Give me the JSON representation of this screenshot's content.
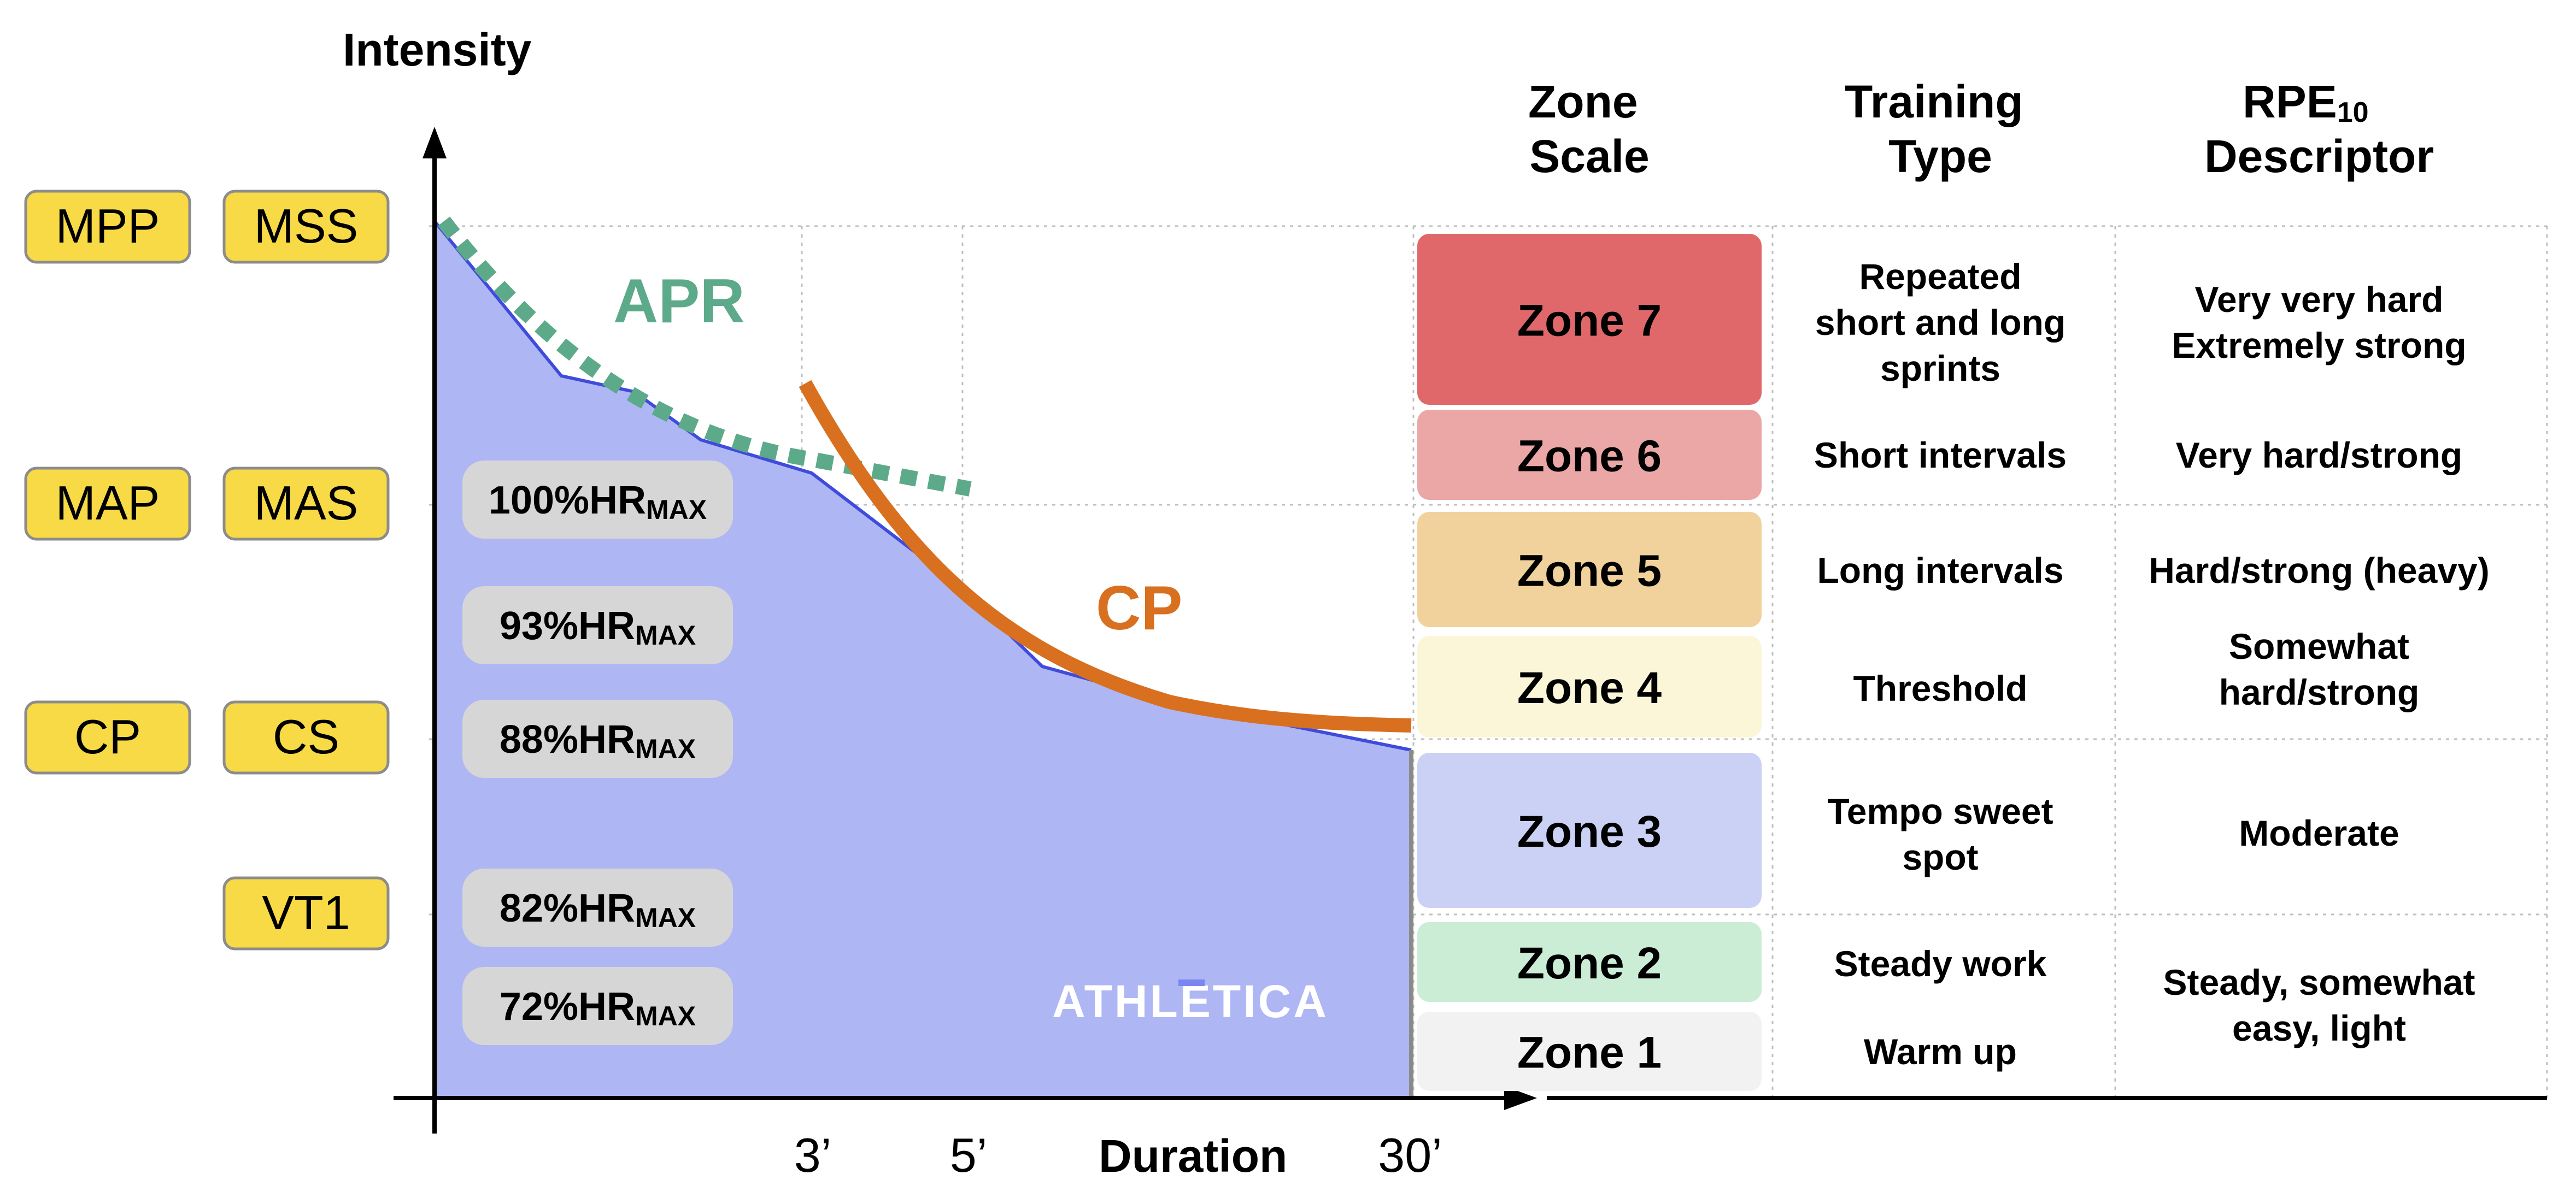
{
  "axes": {
    "y_label": "Intensity",
    "x_label": "Duration",
    "x_ticks": [
      "3’",
      "5’",
      "30’"
    ]
  },
  "left_labels": {
    "row1": [
      "MPP",
      "MSS"
    ],
    "row2": [
      "MAP",
      "MAS"
    ],
    "row3": [
      "CP",
      "CS"
    ],
    "row4": [
      "VT1"
    ]
  },
  "hr_labels": [
    {
      "pct": "100%",
      "hr": "HR",
      "sub": "MAX"
    },
    {
      "pct": "93%",
      "hr": "HR",
      "sub": "MAX"
    },
    {
      "pct": "88%",
      "hr": "HR",
      "sub": "MAX"
    },
    {
      "pct": "82%",
      "hr": "HR",
      "sub": "MAX"
    },
    {
      "pct": "72%",
      "hr": "HR",
      "sub": "MAX"
    }
  ],
  "curves": {
    "apr_label": "APR",
    "cp_label": "CP"
  },
  "watermark": "ATHLETICA",
  "table": {
    "headers": {
      "zone_scale": [
        "Zone",
        "Scale"
      ],
      "training_type": [
        "Training",
        "Type"
      ],
      "rpe": {
        "main": "RPE",
        "sub": "10",
        "line2": "Descriptor"
      }
    },
    "zones": [
      {
        "name": "Zone 7",
        "color": "#E0686A"
      },
      {
        "name": "Zone 6",
        "color": "#EBA7A6"
      },
      {
        "name": "Zone 5",
        "color": "#F1D19C"
      },
      {
        "name": "Zone 4",
        "color": "#FCF6D8"
      },
      {
        "name": "Zone 3",
        "color": "#CBD0F5"
      },
      {
        "name": "Zone 2",
        "color": "#CBEDD6"
      },
      {
        "name": "Zone 1",
        "color": "#F2F2F3"
      }
    ],
    "training_types": [
      [
        "Repeated",
        "short and long",
        "sprints"
      ],
      [
        "Short intervals"
      ],
      [
        "Long intervals"
      ],
      [
        "Threshold"
      ],
      [
        "Tempo sweet",
        "spot"
      ],
      [
        "Steady work"
      ],
      [
        "Warm up"
      ]
    ],
    "rpe_descriptors": [
      [
        "Very very hard",
        "Extremely strong"
      ],
      [
        "Very hard/strong"
      ],
      [
        "Hard/strong (heavy)"
      ],
      [
        "Somewhat",
        "hard/strong"
      ],
      [
        "Moderate"
      ],
      [
        "Steady, somewhat",
        "easy, light"
      ]
    ]
  },
  "colors": {
    "area_fill": "#AFB6F4",
    "area_line": "#3F4BDB",
    "apr": "#5DAA8A",
    "cp": "#D8701F",
    "pill_yellow": "#F7DA45",
    "pill_gray": "#D6D6D6",
    "grid": "#BFBFBF"
  }
}
